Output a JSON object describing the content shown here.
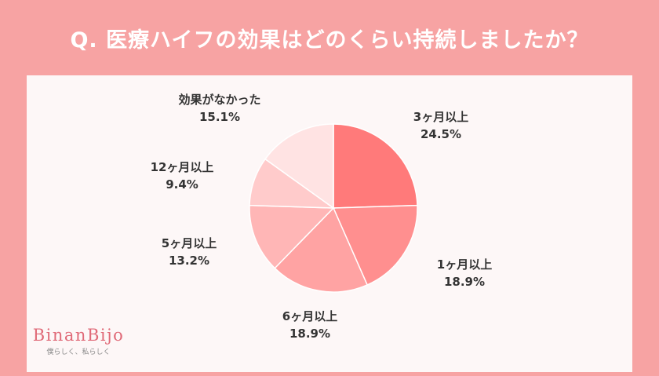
{
  "header": {
    "title": "Q. 医療ハイフの効果はどのくらい持続しましたか？"
  },
  "brand": {
    "name": "BinanBijo",
    "tagline": "僕らしく、私らしく"
  },
  "chart_data": {
    "type": "pie",
    "title": "Q. 医療ハイフの効果はどのくらい持続しましたか？",
    "slices": [
      {
        "label": "3ヶ月以上",
        "value": 24.5,
        "value_label": "24.5%",
        "color": "#ff7a7a"
      },
      {
        "label": "1ヶ月以上",
        "value": 18.9,
        "value_label": "18.9%",
        "color": "#ff8f8f"
      },
      {
        "label": "6ヶ月以上",
        "value": 18.9,
        "value_label": "18.9%",
        "color": "#ffa3a3"
      },
      {
        "label": "5ヶ月以上",
        "value": 13.2,
        "value_label": "13.2%",
        "color": "#ffb6b6"
      },
      {
        "label": "12ヶ月以上",
        "value": 9.4,
        "value_label": "9.4%",
        "color": "#ffcbcb"
      },
      {
        "label": "効果がなかった",
        "value": 15.1,
        "value_label": "15.1%",
        "color": "#ffe3e3"
      }
    ]
  }
}
